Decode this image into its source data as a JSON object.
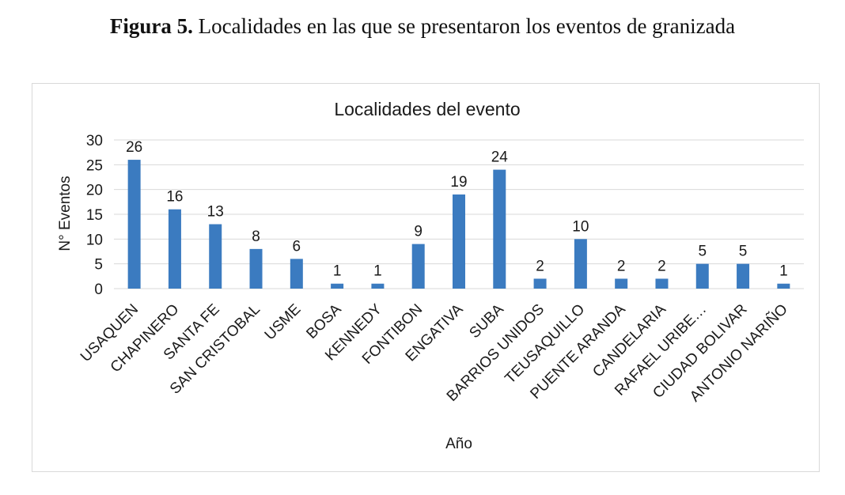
{
  "figure": {
    "label": "Figura 5.",
    "caption": " Localidades en las que se presentaron los eventos de granizada"
  },
  "chart_data": {
    "type": "bar",
    "title": "Localidades del evento",
    "xlabel": "Año",
    "ylabel": "N° Eventos",
    "ylim": [
      0,
      30
    ],
    "yticks": [
      0,
      5,
      10,
      15,
      20,
      25,
      30
    ],
    "grid": true,
    "bar_color": "#3b7bc0",
    "categories": [
      "USAQUEN",
      "CHAPINERO",
      "SANTA FE",
      "SAN CRISTOBAL",
      "USME",
      "BOSA",
      "KENNEDY",
      "FONTIBON",
      "ENGATIVA",
      "SUBA",
      "BARRIOS UNIDOS",
      "TEUSAQUILLO",
      "PUENTE ARANDA",
      "CANDELARIA",
      "RAFAEL URIBE…",
      "CIUDAD BOLIVAR",
      "ANTONIO NARIÑO"
    ],
    "values": [
      26,
      16,
      13,
      8,
      6,
      1,
      1,
      9,
      19,
      24,
      2,
      10,
      2,
      2,
      5,
      5,
      1
    ]
  }
}
